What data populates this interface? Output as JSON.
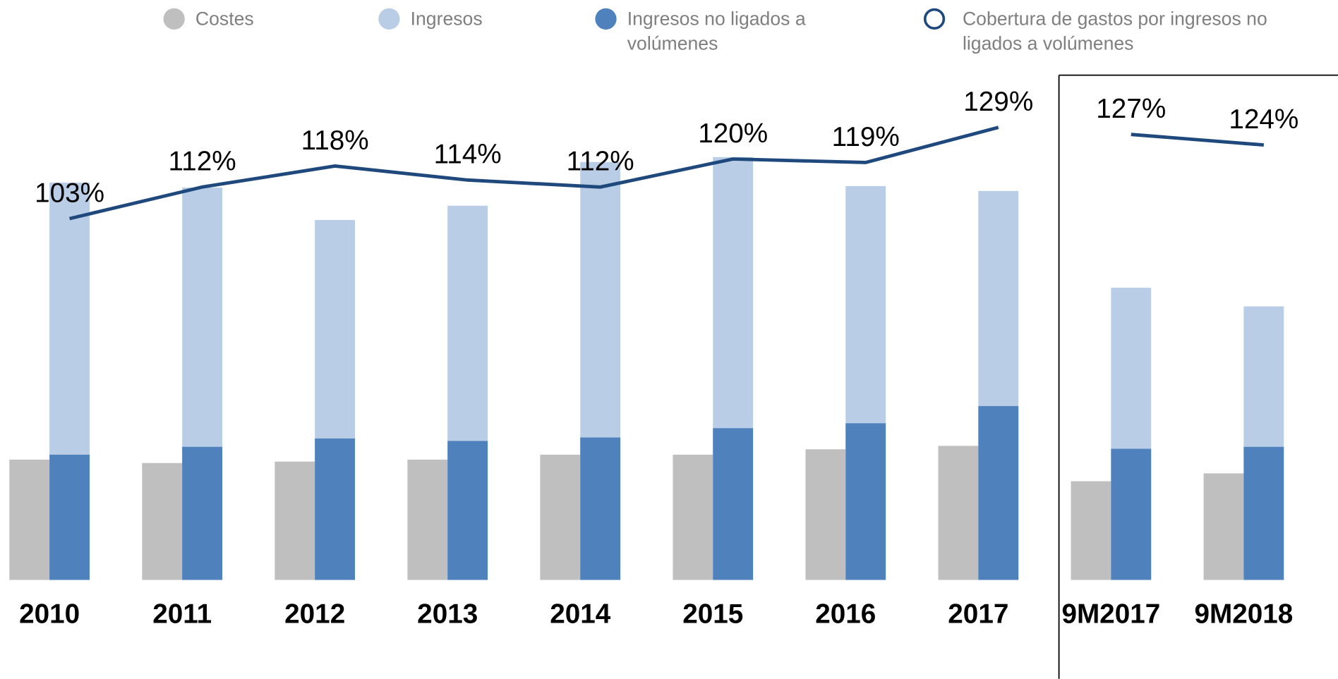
{
  "chart_data": {
    "type": "bar",
    "categories": [
      "2010",
      "2011",
      "2012",
      "2013",
      "2014",
      "2015",
      "2016",
      "2017",
      "9M2017",
      "9M2018"
    ],
    "divider_after": 7,
    "ylim": [
      0,
      100
    ],
    "y2lim": [
      0,
      140
    ],
    "series": [
      {
        "name": "Costes",
        "color": "#bfbfbf",
        "values": [
          24.5,
          23.8,
          24.1,
          24.5,
          25.5,
          25.5,
          26.6,
          27.3,
          20.1,
          21.7
        ]
      },
      {
        "name": "Ingresos",
        "color": "#b9cde6",
        "values": [
          80.9,
          79.9,
          73.3,
          76.2,
          85.1,
          86.1,
          80.2,
          79.2,
          59.5,
          55.7
        ]
      },
      {
        "name": "Ingresos no ligados a volúmenes",
        "color": "#4f81bd",
        "values": [
          25.5,
          27.1,
          28.8,
          28.3,
          29.0,
          30.9,
          31.9,
          35.4,
          26.7,
          27.1
        ]
      },
      {
        "name": "Cobertura de gastos por ingresos no ligados a volúmenes",
        "color": "#1f497d",
        "type": "line",
        "axis": "y2",
        "values": [
          103,
          112,
          118,
          114,
          112,
          120,
          119,
          129,
          127,
          124
        ],
        "value_labels": [
          "103%",
          "112%",
          "118%",
          "114%",
          "112%",
          "120%",
          "119%",
          "129%",
          "127%",
          "124%"
        ]
      }
    ]
  }
}
